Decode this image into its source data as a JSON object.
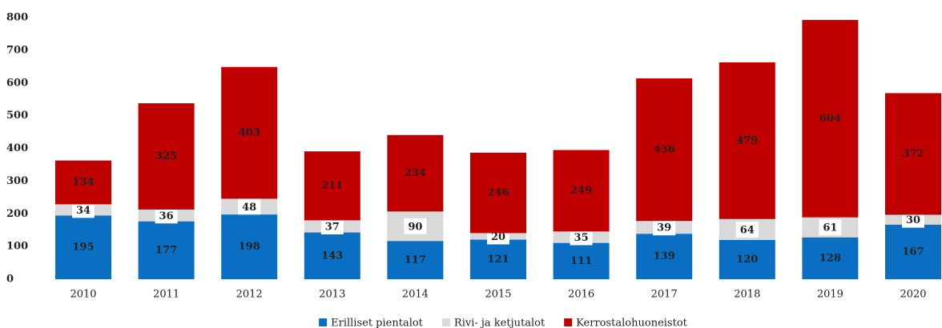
{
  "chart_data": {
    "type": "stacked_bar",
    "categories": [
      "2010",
      "2011",
      "2012",
      "2013",
      "2014",
      "2015",
      "2016",
      "2017",
      "2018",
      "2019",
      "2020"
    ],
    "series": [
      {
        "name": "Erilliset pientalot",
        "color": "#0a6fc2",
        "values": [
          195,
          177,
          198,
          143,
          117,
          121,
          111,
          139,
          120,
          128,
          167
        ]
      },
      {
        "name": "Rivi- ja ketjutalot",
        "color": "#d9d9d9",
        "values": [
          34,
          36,
          48,
          37,
          90,
          20,
          35,
          39,
          64,
          61,
          30
        ]
      },
      {
        "name": "Kerrostalohuoneistot",
        "color": "#c00000",
        "values": [
          134,
          325,
          403,
          211,
          234,
          246,
          249,
          436,
          479,
          604,
          372
        ]
      }
    ],
    "ylim": [
      0,
      800
    ],
    "yticks": [
      0,
      100,
      200,
      300,
      400,
      500,
      600,
      700,
      800
    ],
    "grid": false,
    "legend": "bottom"
  }
}
